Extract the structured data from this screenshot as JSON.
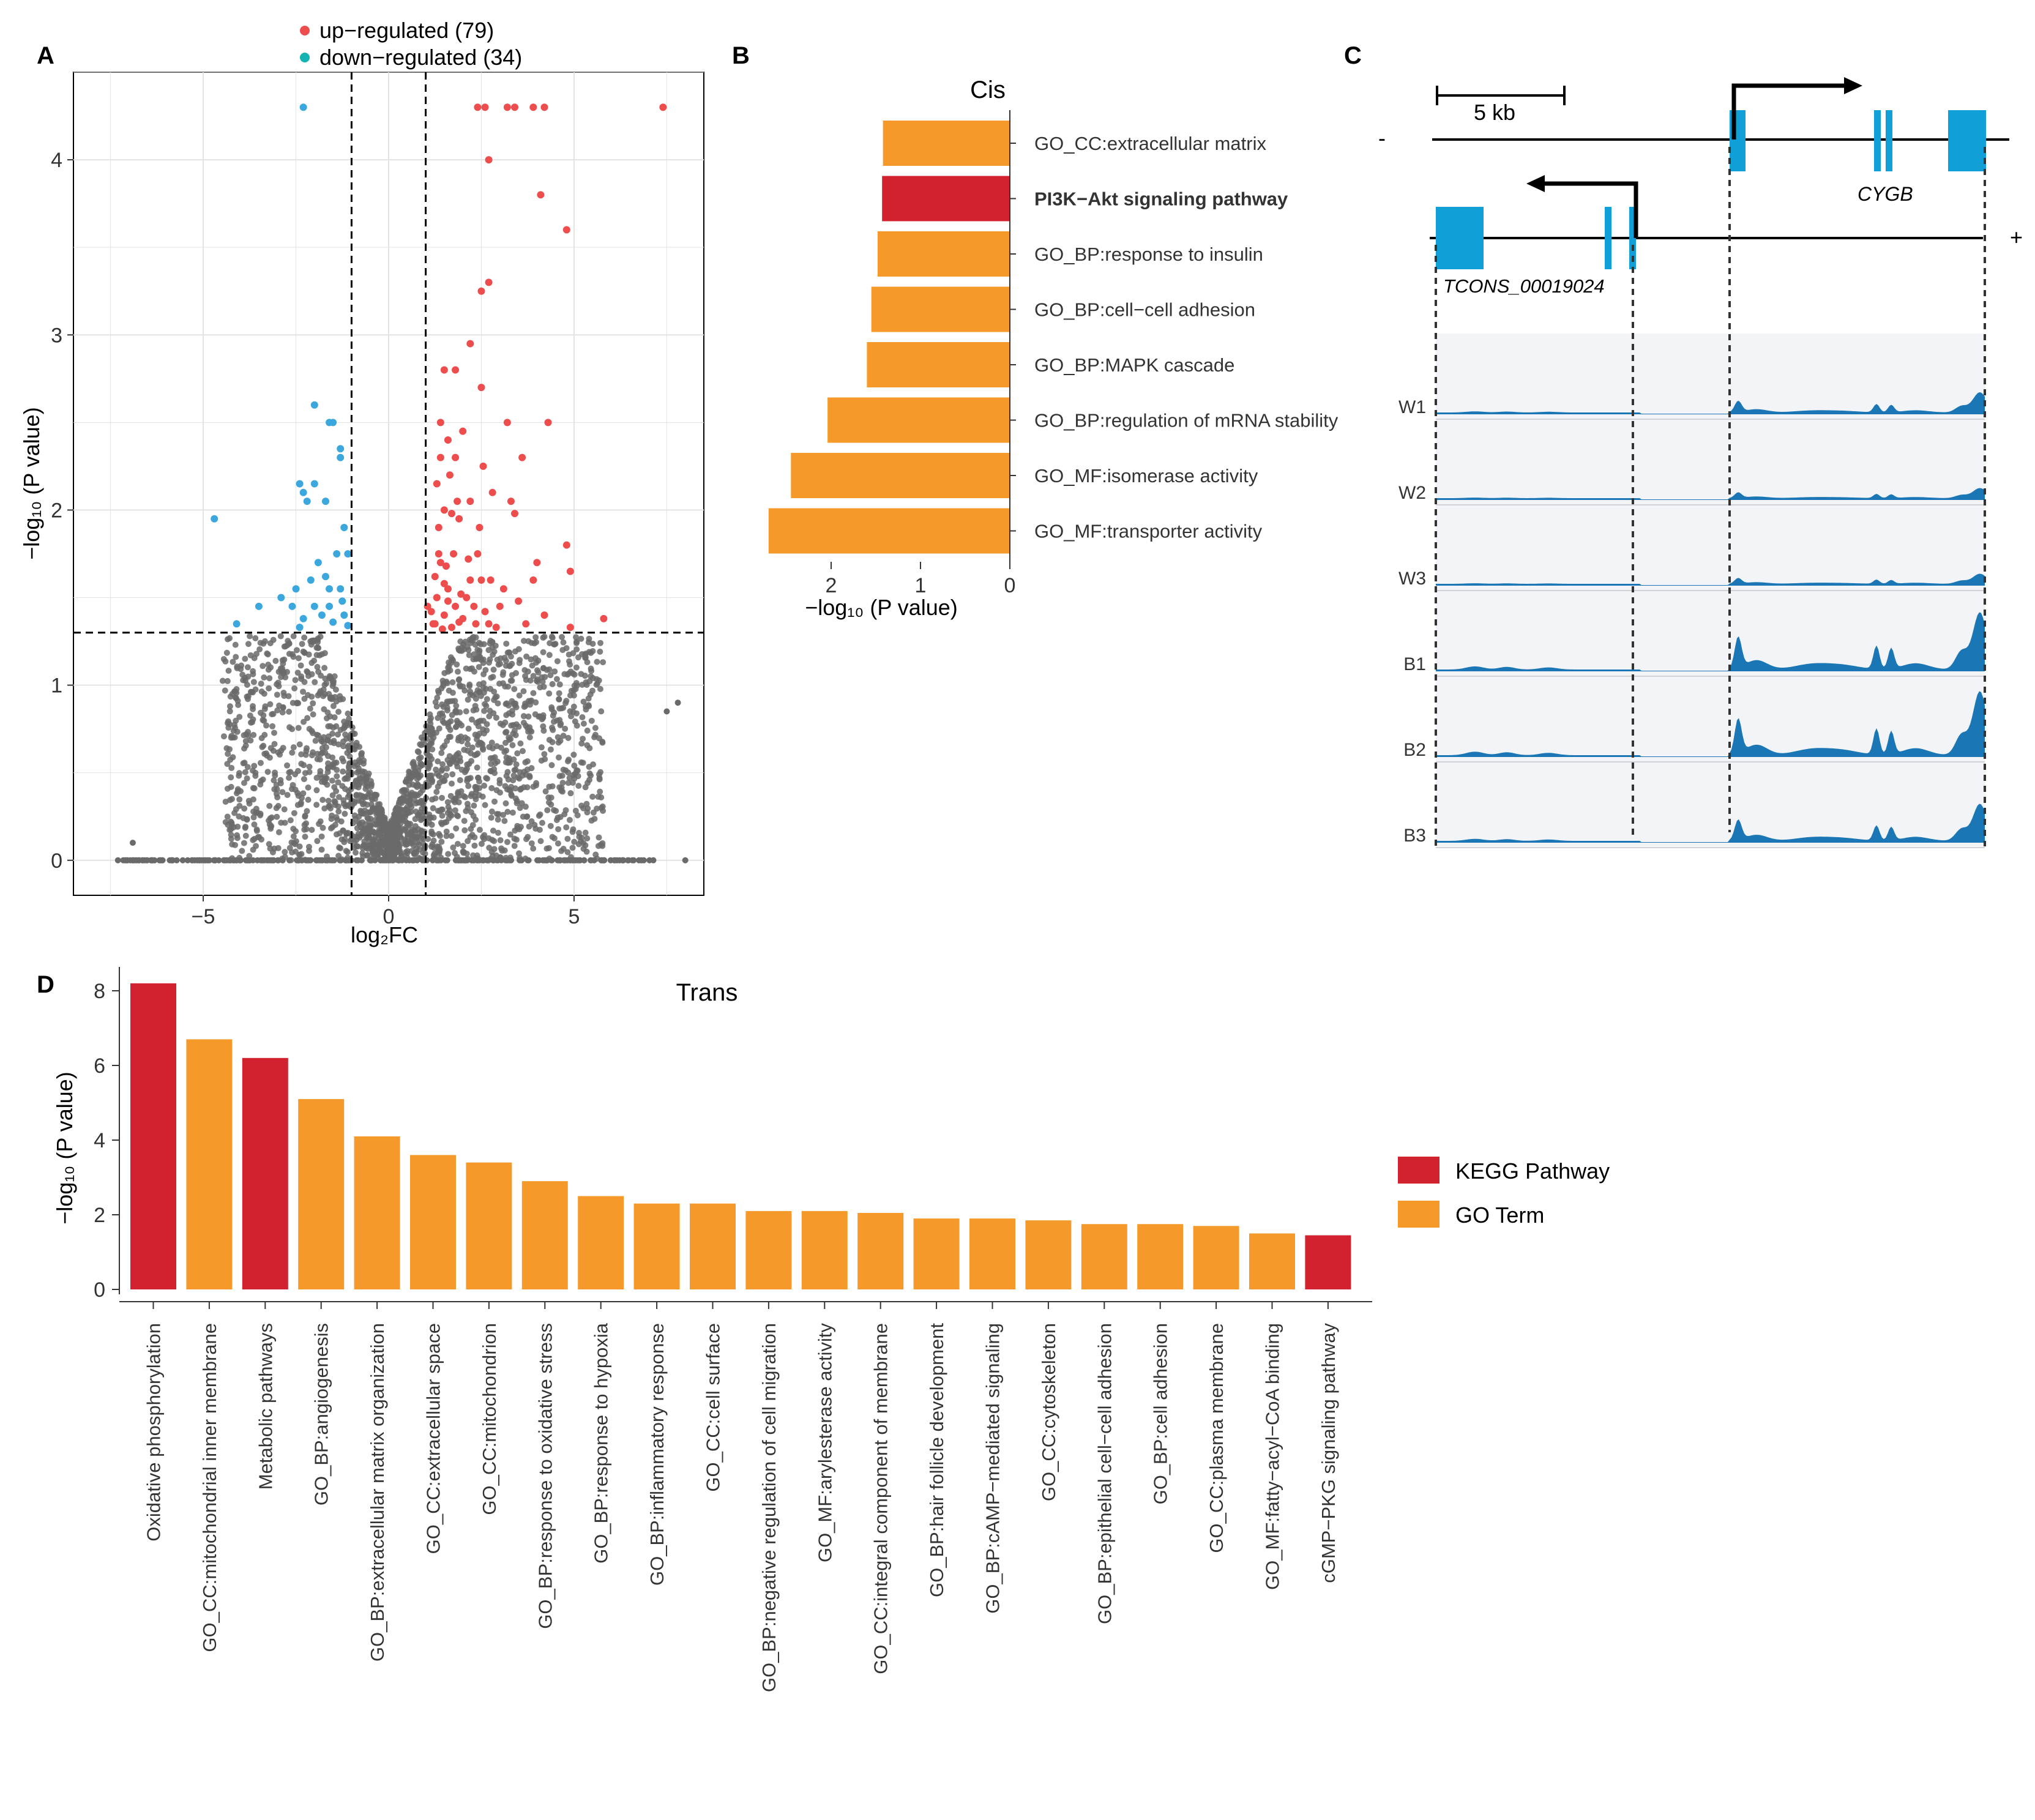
{
  "colors": {
    "up": "#ee4d4d",
    "down": "#3ca7dd",
    "ns": "#6a6a6a",
    "kegg": "#d22230",
    "go": "#f59a2a",
    "gene": "#109fd6",
    "track": "#1a76b5",
    "trackbg": "#f3f4f7"
  },
  "panel_letters": [
    "A",
    "B",
    "C",
    "D"
  ],
  "chart_data": [
    {
      "panel": "A",
      "type": "scatter",
      "title": "",
      "xlabel": "log₂FC",
      "ylabel": "−log₁₀ (P value)",
      "xlim": [
        -8.5,
        8.5
      ],
      "ylim": [
        -0.2,
        4.5
      ],
      "xticks": [
        -5,
        0,
        5
      ],
      "yticks": [
        0,
        1,
        2,
        3,
        4
      ],
      "fc_threshold": [
        -1,
        1
      ],
      "p_threshold": 1.3,
      "legend": {
        "position": "top",
        "entries": [
          {
            "label": "up−regulated (79)",
            "class": "up"
          },
          {
            "label": "down−regulated (34)",
            "class": "down"
          }
        ]
      },
      "points_up": [
        [
          7.4,
          4.3
        ],
        [
          2.4,
          4.3
        ],
        [
          2.6,
          4.3
        ],
        [
          3.2,
          4.3
        ],
        [
          3.4,
          4.3
        ],
        [
          3.9,
          4.3
        ],
        [
          4.2,
          4.3
        ],
        [
          2.7,
          4.0
        ],
        [
          4.1,
          3.8
        ],
        [
          4.8,
          3.6
        ],
        [
          2.7,
          3.3
        ],
        [
          2.5,
          3.25
        ],
        [
          2.2,
          2.95
        ],
        [
          1.5,
          2.8
        ],
        [
          1.8,
          2.8
        ],
        [
          2.5,
          2.7
        ],
        [
          1.4,
          2.5
        ],
        [
          3.2,
          2.5
        ],
        [
          4.3,
          2.5
        ],
        [
          1.6,
          2.4
        ],
        [
          1.8,
          2.3
        ],
        [
          3.6,
          2.3
        ],
        [
          2.8,
          2.1
        ],
        [
          3.3,
          2.05
        ],
        [
          1.5,
          2.0
        ],
        [
          1.9,
          1.95
        ],
        [
          4.8,
          1.8
        ],
        [
          1.4,
          1.7
        ],
        [
          2.2,
          1.6
        ],
        [
          3.9,
          1.6
        ],
        [
          1.6,
          1.55
        ],
        [
          2.5,
          1.6
        ],
        [
          4.9,
          1.65
        ],
        [
          1.3,
          1.5
        ],
        [
          1.8,
          1.45
        ],
        [
          2.3,
          1.45
        ],
        [
          3.0,
          1.45
        ],
        [
          4.2,
          1.4
        ],
        [
          1.5,
          1.4
        ],
        [
          2.0,
          1.38
        ],
        [
          2.7,
          1.35
        ],
        [
          5.8,
          1.38
        ],
        [
          1.2,
          1.35
        ],
        [
          1.7,
          1.33
        ],
        [
          4.9,
          1.33
        ],
        [
          2.1,
          1.5
        ],
        [
          1.35,
          1.9
        ],
        [
          2.4,
          1.75
        ],
        [
          3.1,
          1.55
        ],
        [
          1.25,
          1.62
        ],
        [
          1.55,
          1.68
        ],
        [
          1.95,
          1.52
        ],
        [
          2.6,
          1.42
        ],
        [
          3.5,
          1.48
        ],
        [
          1.45,
          1.32
        ],
        [
          1.9,
          1.36
        ],
        [
          2.9,
          1.33
        ],
        [
          1.3,
          2.15
        ],
        [
          1.65,
          2.2
        ],
        [
          2.2,
          2.05
        ],
        [
          3.4,
          1.98
        ],
        [
          1.4,
          2.3
        ],
        [
          2.0,
          2.45
        ],
        [
          1.75,
          1.75
        ],
        [
          2.45,
          1.9
        ],
        [
          1.15,
          1.42
        ],
        [
          1.6,
          1.48
        ],
        [
          2.35,
          1.35
        ],
        [
          3.7,
          1.35
        ],
        [
          1.25,
          1.35
        ],
        [
          4.0,
          1.7
        ],
        [
          1.85,
          2.05
        ],
        [
          2.75,
          1.6
        ],
        [
          1.5,
          1.58
        ],
        [
          1.05,
          1.45
        ],
        [
          2.15,
          1.72
        ],
        [
          1.7,
          1.98
        ],
        [
          2.55,
          2.25
        ],
        [
          1.35,
          1.75
        ]
      ],
      "points_down": [
        [
          -2.3,
          4.3
        ],
        [
          -2.0,
          2.6
        ],
        [
          -1.6,
          2.5
        ],
        [
          -1.5,
          2.5
        ],
        [
          -1.3,
          2.35
        ],
        [
          -1.3,
          2.3
        ],
        [
          -2.4,
          2.15
        ],
        [
          -2.3,
          2.1
        ],
        [
          -2.0,
          2.15
        ],
        [
          -1.7,
          2.05
        ],
        [
          -2.2,
          2.05
        ],
        [
          -4.7,
          1.95
        ],
        [
          -1.2,
          1.9
        ],
        [
          -1.1,
          1.75
        ],
        [
          -1.9,
          1.7
        ],
        [
          -2.1,
          1.6
        ],
        [
          -1.6,
          1.55
        ],
        [
          -2.5,
          1.55
        ],
        [
          -1.3,
          1.55
        ],
        [
          -3.5,
          1.45
        ],
        [
          -2.9,
          1.5
        ],
        [
          -2.0,
          1.45
        ],
        [
          -1.6,
          1.45
        ],
        [
          -1.2,
          1.4
        ],
        [
          -1.8,
          1.4
        ],
        [
          -2.3,
          1.38
        ],
        [
          -1.5,
          1.36
        ],
        [
          -4.1,
          1.35
        ],
        [
          -1.1,
          1.34
        ],
        [
          -2.4,
          1.33
        ],
        [
          -1.7,
          1.62
        ],
        [
          -1.4,
          1.75
        ],
        [
          -2.6,
          1.45
        ],
        [
          -1.25,
          1.48
        ]
      ]
    },
    {
      "panel": "B",
      "type": "bar",
      "orientation": "horizontal",
      "title": "Cis",
      "xlabel": "−log₁₀ (P value)",
      "xlim": [
        0,
        2.75
      ],
      "xticks": [
        2,
        1,
        0
      ],
      "categories": [
        "GO_CC:extracellular matrix",
        "PI3K−Akt signaling pathway",
        "GO_BP:response to insulin",
        "GO_BP:cell−cell adhesion",
        "GO_BP:MAPK cascade",
        "GO_BP:regulation of mRNA stability",
        "GO_MF:isomerase activity",
        "GO_MF:transporter activity"
      ],
      "values": [
        1.42,
        1.43,
        1.48,
        1.55,
        1.6,
        2.04,
        2.45,
        2.7
      ],
      "kinds": [
        "go",
        "kegg",
        "go",
        "go",
        "go",
        "go",
        "go",
        "go"
      ]
    },
    {
      "panel": "D",
      "type": "bar",
      "title": "Trans",
      "ylabel": "−log₁₀ (P value)",
      "ylim": [
        0,
        8.5
      ],
      "yticks": [
        0,
        2,
        4,
        6,
        8
      ],
      "categories": [
        "Oxidative phosphorylation",
        "GO_CC:mitochondrial inner membrane",
        "Metabolic pathways",
        "GO_BP:angiogenesis",
        "GO_BP:extracellular matrix organization",
        "GO_CC:extracellular space",
        "GO_CC:mitochondrion",
        "GO_BP:response to oxidative stress",
        "GO_BP:response to hypoxia",
        "GO_BP:inflammatory response",
        "GO_CC:cell surface",
        "GO_BP:negative regulation of cell migration",
        "GO_MF:arylesterase activity",
        "GO_CC:integral component of membrane",
        "GO_BP:hair follicle development",
        "GO_BP:cAMP−mediated signaling",
        "GO_CC:cytoskeleton",
        "GO_BP:epithelial cell−cell adhesion",
        "GO_BP:cell adhesion",
        "GO_CC:plasma membrane",
        "GO_MF:fatty−acyl−CoA binding",
        "cGMP−PKG signaling pathway"
      ],
      "values": [
        8.2,
        6.7,
        6.2,
        5.1,
        4.1,
        3.6,
        3.4,
        2.9,
        2.5,
        2.3,
        2.3,
        2.1,
        2.1,
        2.05,
        1.9,
        1.9,
        1.85,
        1.75,
        1.75,
        1.7,
        1.5,
        1.45
      ],
      "kinds": [
        "kegg",
        "go",
        "kegg",
        "go",
        "go",
        "go",
        "go",
        "go",
        "go",
        "go",
        "go",
        "go",
        "go",
        "go",
        "go",
        "go",
        "go",
        "go",
        "go",
        "go",
        "go",
        "kegg"
      ],
      "legend": {
        "position": "right",
        "entries": [
          {
            "label": "KEGG Pathway",
            "kind": "kegg"
          },
          {
            "label": "GO Term",
            "kind": "go"
          }
        ]
      }
    }
  ],
  "panel_c": {
    "scale_label": "5 kb",
    "minus_strand": "-",
    "plus_strand": "+",
    "gene_cygb": "CYGB",
    "gene_tcons": "TCONS_00019024",
    "tracks": [
      "W1",
      "W2",
      "W3",
      "B1",
      "B2",
      "B3"
    ],
    "track_peak_levels": [
      0.3,
      0.15,
      0.15,
      0.85,
      0.95,
      0.55
    ]
  }
}
